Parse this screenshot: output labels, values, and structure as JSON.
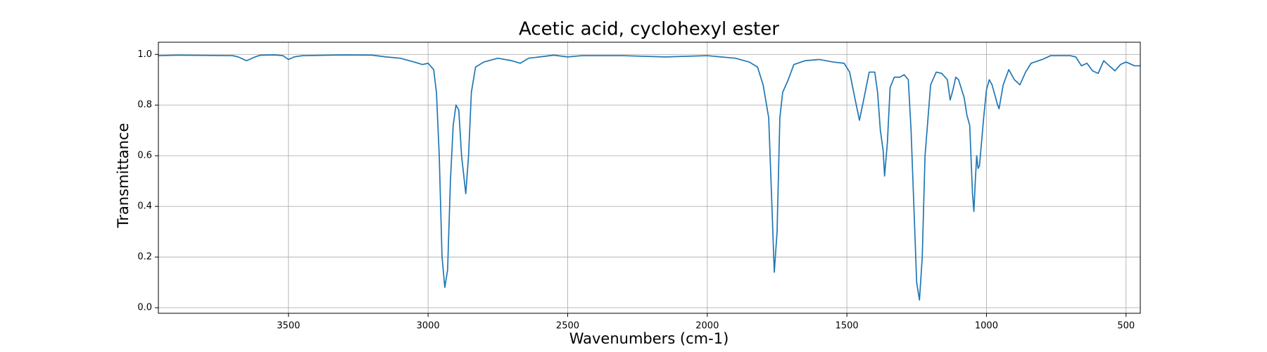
{
  "chart_data": {
    "type": "line",
    "title": "Acetic acid, cyclohexyl ester",
    "xlabel": "Wavenumbers (cm-1)",
    "ylabel": "Transmittance",
    "color": "#1f77b4",
    "grid": true,
    "xlim": [
      3966,
      449
    ],
    "ylim": [
      -0.022,
      1.048
    ],
    "xticks": [
      3500,
      3000,
      2500,
      2000,
      1500,
      1000,
      500
    ],
    "yticks": [
      {
        "value": 0,
        "label": "0.0"
      },
      {
        "value": 0.2,
        "label": "0.2"
      },
      {
        "value": 0.4,
        "label": "0.4"
      },
      {
        "value": 0.6,
        "label": "0.6"
      },
      {
        "value": 0.8,
        "label": "0.8"
      },
      {
        "value": 1,
        "label": "1.0"
      }
    ],
    "x": [
      3966,
      3900,
      3800,
      3700,
      3680,
      3650,
      3620,
      3600,
      3550,
      3520,
      3500,
      3480,
      3450,
      3300,
      3200,
      3150,
      3100,
      3050,
      3020,
      3000,
      2980,
      2970,
      2960,
      2950,
      2940,
      2930,
      2920,
      2910,
      2900,
      2890,
      2880,
      2865,
      2855,
      2845,
      2830,
      2800,
      2750,
      2700,
      2670,
      2640,
      2600,
      2550,
      2500,
      2450,
      2300,
      2150,
      2000,
      1900,
      1850,
      1820,
      1800,
      1780,
      1770,
      1760,
      1750,
      1740,
      1730,
      1710,
      1690,
      1650,
      1600,
      1550,
      1510,
      1490,
      1470,
      1455,
      1440,
      1420,
      1400,
      1390,
      1380,
      1370,
      1365,
      1355,
      1345,
      1330,
      1310,
      1295,
      1280,
      1270,
      1260,
      1250,
      1240,
      1230,
      1220,
      1200,
      1180,
      1160,
      1140,
      1130,
      1120,
      1110,
      1100,
      1080,
      1070,
      1060,
      1050,
      1045,
      1040,
      1035,
      1030,
      1025,
      1010,
      1000,
      990,
      980,
      960,
      955,
      940,
      920,
      900,
      880,
      860,
      840,
      800,
      770,
      700,
      680,
      660,
      640,
      620,
      600,
      590,
      580,
      560,
      540,
      520,
      500,
      470,
      449
    ],
    "values": [
      0.995,
      0.997,
      0.996,
      0.995,
      0.99,
      0.975,
      0.99,
      0.997,
      0.998,
      0.995,
      0.98,
      0.99,
      0.995,
      0.998,
      0.997,
      0.99,
      0.985,
      0.97,
      0.96,
      0.965,
      0.94,
      0.85,
      0.6,
      0.2,
      0.08,
      0.15,
      0.5,
      0.72,
      0.8,
      0.78,
      0.6,
      0.45,
      0.6,
      0.85,
      0.95,
      0.97,
      0.985,
      0.975,
      0.965,
      0.985,
      0.99,
      0.997,
      0.99,
      0.995,
      0.995,
      0.99,
      0.995,
      0.985,
      0.97,
      0.95,
      0.88,
      0.75,
      0.45,
      0.14,
      0.3,
      0.75,
      0.85,
      0.9,
      0.96,
      0.975,
      0.98,
      0.97,
      0.965,
      0.93,
      0.82,
      0.74,
      0.82,
      0.93,
      0.93,
      0.85,
      0.7,
      0.62,
      0.52,
      0.65,
      0.87,
      0.91,
      0.91,
      0.92,
      0.9,
      0.7,
      0.4,
      0.1,
      0.03,
      0.2,
      0.6,
      0.88,
      0.93,
      0.925,
      0.9,
      0.82,
      0.86,
      0.91,
      0.9,
      0.83,
      0.76,
      0.72,
      0.45,
      0.38,
      0.5,
      0.6,
      0.55,
      0.56,
      0.75,
      0.86,
      0.9,
      0.88,
      0.8,
      0.785,
      0.88,
      0.94,
      0.9,
      0.88,
      0.93,
      0.965,
      0.98,
      0.995,
      0.995,
      0.99,
      0.955,
      0.965,
      0.935,
      0.925,
      0.95,
      0.975,
      0.955,
      0.935,
      0.96,
      0.97,
      0.955,
      0.955
    ]
  }
}
